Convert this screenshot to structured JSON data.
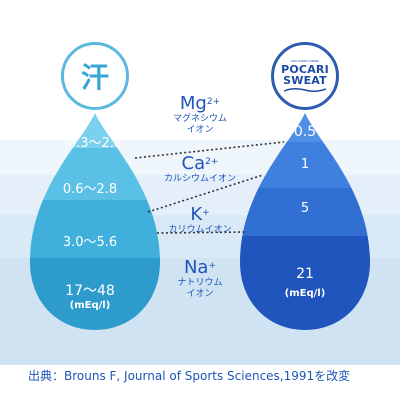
{
  "left_drop": {
    "circle_label": "汗",
    "values": [
      "0.3～2.8",
      "0.6～2.8",
      "3.0～5.6",
      "17～48"
    ],
    "unit": "(mEq/l)"
  },
  "right_drop": {
    "logo_small_text": "ION SUPPLY DRINK",
    "logo_line1": "POCARI",
    "logo_line2": "SWEAT",
    "values": [
      "0.5",
      "1",
      "5",
      "21"
    ],
    "unit": "(mEq/l)"
  },
  "ions": [
    {
      "symbol": "Mg",
      "charge": "2+",
      "name_line1": "マグネシウム",
      "name_line2": "イオン"
    },
    {
      "symbol": "Ca",
      "charge": "2+",
      "name_line1": "カルシウムイオン",
      "name_line2": ""
    },
    {
      "symbol": "K",
      "charge": "+",
      "name_line1": "カリウムイオン",
      "name_line2": ""
    },
    {
      "symbol": "Na",
      "charge": "+",
      "name_line1": "ナトリウム",
      "name_line2": "イオン"
    }
  ],
  "source": "出典：Brouns F, Journal of Sports Sciences,1991を改変",
  "colors": {
    "sweat_light": "#5cc3e6",
    "sweat_dark": "#2e9acb",
    "pocari_light": "#3a7fe0",
    "pocari_dark": "#1b4fb8",
    "ion_text": "#1f55b8"
  }
}
